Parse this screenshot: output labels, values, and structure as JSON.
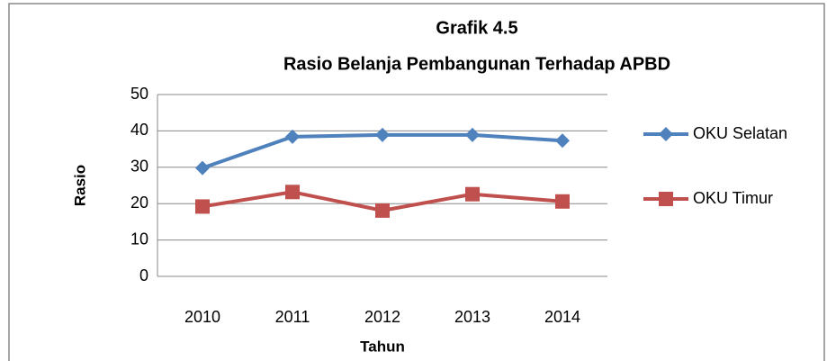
{
  "chart_data": {
    "type": "line",
    "title": "Grafik 4.5",
    "subtitle": "Rasio Belanja Pembangunan Terhadap APBD",
    "x_label": "Tahun",
    "y_label": "Rasio",
    "categories": [
      "2010",
      "2011",
      "2012",
      "2013",
      "2014"
    ],
    "series": [
      {
        "name": "OKU Selatan",
        "color": "#4f81bd",
        "marker": "diamond",
        "values": [
          29.8,
          38.4,
          38.9,
          38.9,
          37.3
        ]
      },
      {
        "name": "OKU Timur",
        "color": "#c0504d",
        "marker": "square",
        "values": [
          19.2,
          23.2,
          18.1,
          22.6,
          20.6
        ]
      }
    ],
    "ylim": [
      0,
      50
    ],
    "yticks": [
      0,
      10,
      20,
      30,
      40,
      50
    ],
    "grid": true,
    "legend": "right"
  }
}
